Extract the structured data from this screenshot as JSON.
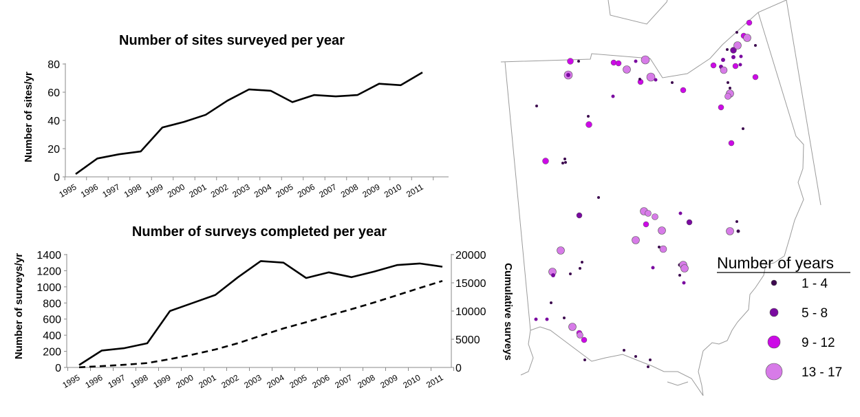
{
  "chart_data": [
    {
      "type": "line",
      "title": "Number of sites surveyed per year",
      "ylabel": "Number of sites/yr",
      "xlabel": "",
      "categories": [
        "1995",
        "1996",
        "1997",
        "1998",
        "1999",
        "2000",
        "2001",
        "2002",
        "2003",
        "2004",
        "2005",
        "2006",
        "2007",
        "2008",
        "2009",
        "2010",
        "2011"
      ],
      "series": [
        {
          "values": [
            2,
            13,
            16,
            18,
            35,
            39,
            44,
            54,
            62,
            61,
            53,
            58,
            57,
            58,
            66,
            65,
            74
          ],
          "style": "solid"
        }
      ],
      "yticks": [
        "0",
        "20",
        "40",
        "60",
        "80"
      ],
      "ylim": [
        0,
        80
      ],
      "grid": false
    },
    {
      "type": "line",
      "title": "Number of surveys completed per year",
      "ylabel": "Number of surveys/yr",
      "y2label": "Cumulative surveys",
      "xlabel": "",
      "categories": [
        "1995",
        "1996",
        "1997",
        "1998",
        "1999",
        "2000",
        "2001",
        "2002",
        "2003",
        "2004",
        "2005",
        "2006",
        "2007",
        "2008",
        "2009",
        "2010",
        "2011"
      ],
      "series": [
        {
          "values": [
            30,
            210,
            240,
            300,
            700,
            800,
            900,
            1120,
            1320,
            1300,
            1110,
            1180,
            1120,
            1190,
            1270,
            1290,
            1250
          ],
          "style": "solid",
          "axis": "left"
        },
        {
          "values": [
            30,
            240,
            480,
            780,
            1480,
            2280,
            3180,
            4300,
            5620,
            6920,
            8030,
            9210,
            10330,
            11520,
            12790,
            14080,
            15330
          ],
          "style": "dashed",
          "axis": "right"
        }
      ],
      "yticks": [
        "0",
        "200",
        "400",
        "600",
        "800",
        "1000",
        "1200",
        "1400"
      ],
      "y2ticks": [
        "0",
        "5000",
        "10000",
        "15000",
        "20000"
      ],
      "ylim": [
        0,
        1400
      ],
      "y2lim": [
        0,
        20000
      ],
      "grid": false
    }
  ],
  "map": {
    "legend": {
      "title": "Number of years",
      "items": [
        {
          "label": "1 - 4",
          "color": "#3d0a4f",
          "r": 4
        },
        {
          "label": "5 - 8",
          "color": "#7a0aa0",
          "r": 6
        },
        {
          "label": "9 - 12",
          "color": "#cc0ae6",
          "r": 9
        },
        {
          "label": "13 - 17",
          "color": "#d77be8",
          "r": 12
        }
      ]
    }
  }
}
